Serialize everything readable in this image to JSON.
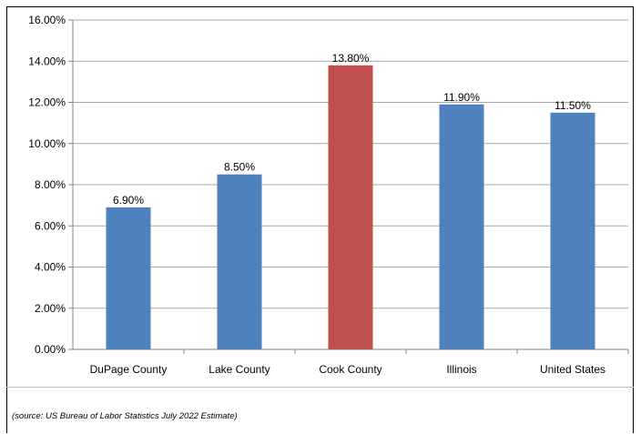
{
  "chart_data": {
    "type": "bar",
    "categories": [
      "DuPage County",
      "Lake County",
      "Cook County",
      "Illinois",
      "United States"
    ],
    "values": [
      0.069,
      0.085,
      0.138,
      0.119,
      0.115
    ],
    "data_labels": [
      "6.90%",
      "8.50%",
      "13.80%",
      "11.90%",
      "11.50%"
    ],
    "bar_colors": [
      "#4f81bd",
      "#4f81bd",
      "#c0504d",
      "#4f81bd",
      "#4f81bd"
    ],
    "ylim": [
      0,
      0.16
    ],
    "yticks": [
      0,
      0.02,
      0.04,
      0.06,
      0.08,
      0.1,
      0.12,
      0.14,
      0.16
    ],
    "ytick_labels": [
      "0.00%",
      "2.00%",
      "4.00%",
      "6.00%",
      "8.00%",
      "10.00%",
      "12.00%",
      "14.00%",
      "16.00%"
    ],
    "title": "",
    "xlabel": "",
    "ylabel": "",
    "grid": true,
    "legend": "none",
    "gridline_color": "#a6a6a6"
  },
  "source_note": "(source: US Bureau of Labor Statistics July 2022 Estimate)"
}
